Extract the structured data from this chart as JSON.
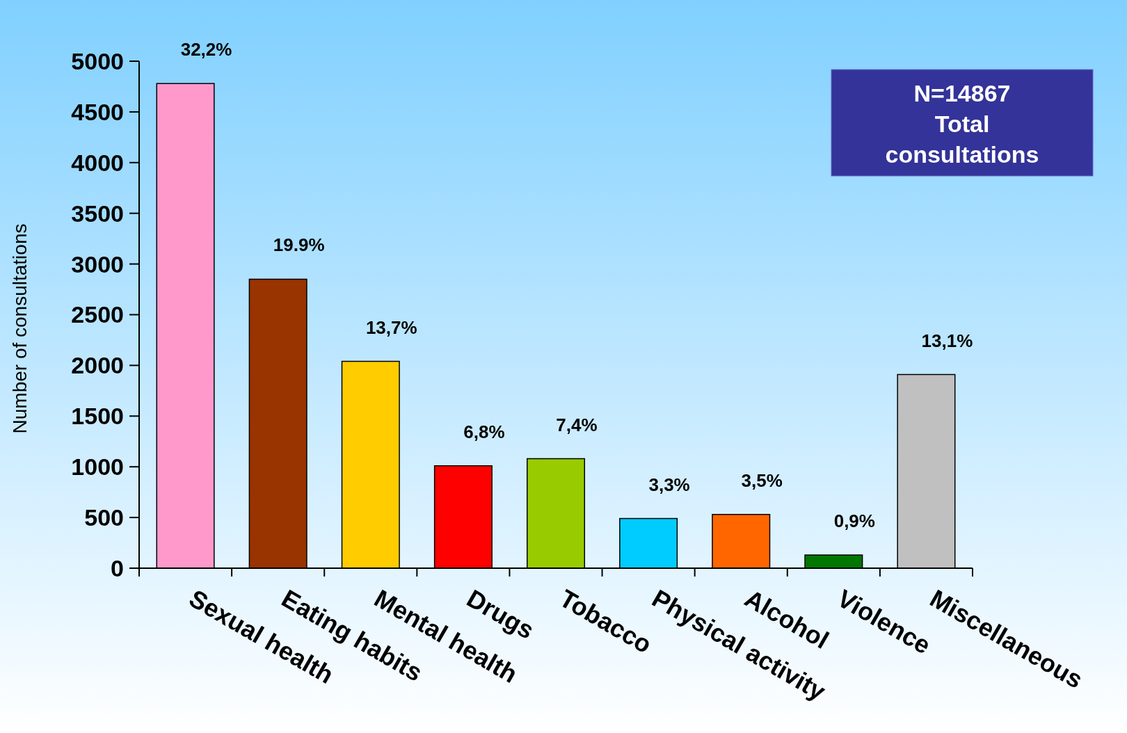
{
  "chart_data": {
    "type": "bar",
    "ylabel": "Number of consultations",
    "categories": [
      "Sexual health",
      "Eating habits",
      "Mental health",
      "Drugs",
      "Tobacco",
      "Physical activity",
      "Alcohol",
      "Violence",
      "Miscellaneous"
    ],
    "values": [
      4780,
      2850,
      2040,
      1010,
      1080,
      490,
      530,
      130,
      1910
    ],
    "colors": [
      "#ff99cc",
      "#993300",
      "#ffcc00",
      "#ff0000",
      "#99cc00",
      "#00ccff",
      "#ff6600",
      "#007700",
      "#c0c0c0"
    ],
    "ylim": [
      0,
      5000
    ],
    "yticks": [
      0,
      500,
      1000,
      1500,
      2000,
      2500,
      3000,
      3500,
      4000,
      4500,
      5000
    ],
    "annotations": [
      {
        "text": "32,2%",
        "x": "Sexual health",
        "y": 4780
      },
      {
        "text": "19.9%",
        "x": "Eating habits",
        "y": 2850
      },
      {
        "text": "13,7%",
        "x": "Mental health",
        "y": 2040
      },
      {
        "text": "6,8%",
        "x": "Drugs",
        "y": 1010
      },
      {
        "text": "7,4%",
        "x": "Tobacco",
        "y": 1080
      },
      {
        "text": "3,3%",
        "x": "Physical activity",
        "y": 490
      },
      {
        "text": "3,5%",
        "x": "Alcohol",
        "y": 530
      },
      {
        "text": "0,9%",
        "x": "Violence",
        "y": 130
      },
      {
        "text": "13,1%",
        "x": "Miscellaneous",
        "y": 1910
      },
      "N=14867 Total consultations"
    ]
  }
}
